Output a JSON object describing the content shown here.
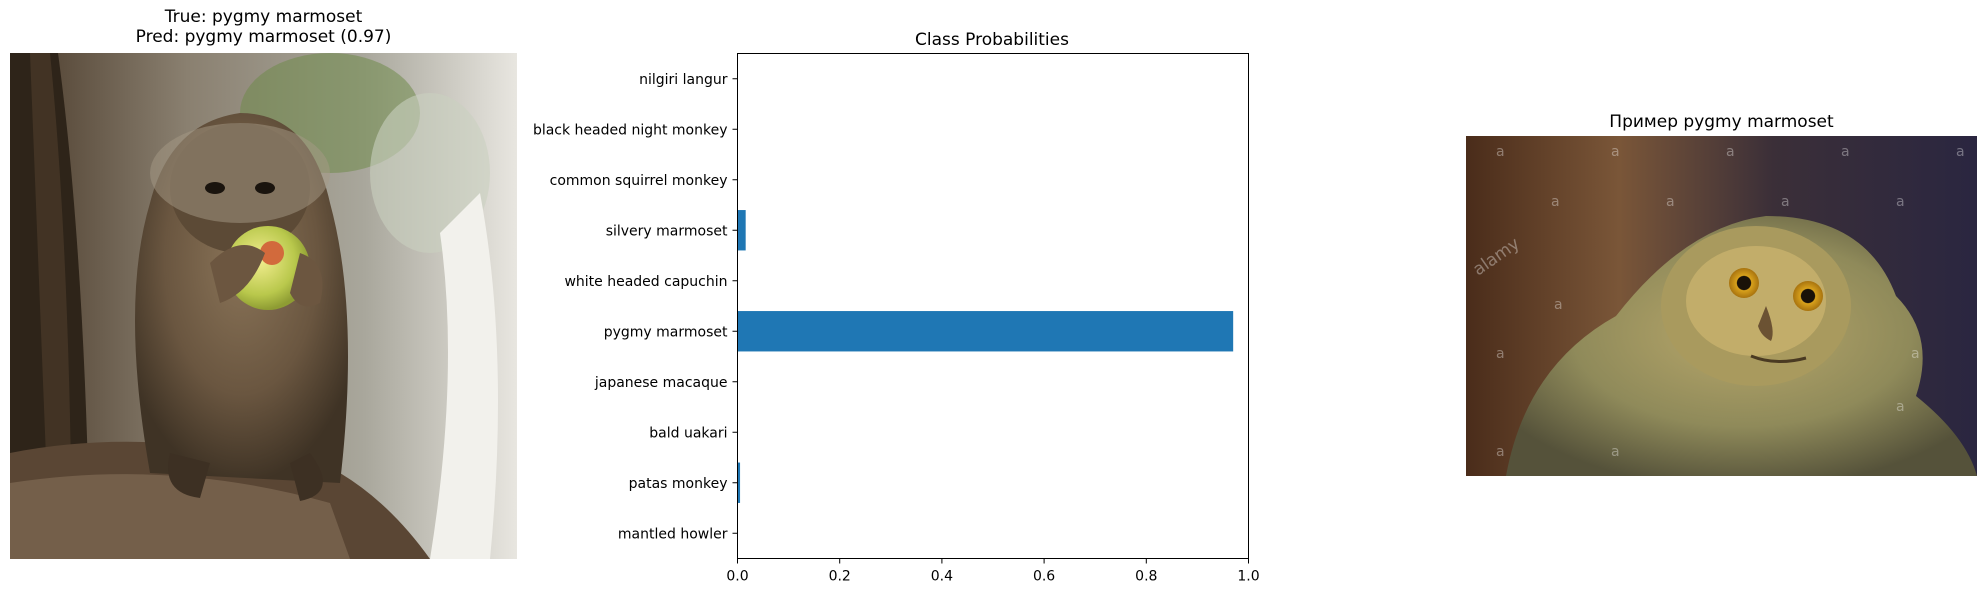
{
  "left_panel": {
    "title_line1": "True: pygmy marmoset",
    "title_line2": "Pred: pygmy marmoset (0.97)"
  },
  "right_panel": {
    "title": "Пример pygmy marmoset",
    "watermark_text": "alamy",
    "watermark_letter": "a"
  },
  "chart_data": {
    "type": "bar",
    "orientation": "horizontal",
    "title": "Class Probabilities",
    "xlabel": "",
    "ylabel": "",
    "categories": [
      "nilgiri langur",
      "black headed night monkey",
      "common squirrel monkey",
      "silvery marmoset",
      "white headed capuchin",
      "pygmy marmoset",
      "japanese macaque",
      "bald uakari",
      "patas monkey",
      "mantled howler"
    ],
    "values": [
      0.0005,
      0.0005,
      0.0005,
      0.016,
      0.0005,
      0.97,
      0.0005,
      0.0005,
      0.005,
      0.0005
    ],
    "xlim": [
      0,
      1.0
    ],
    "xticks": [
      0.0,
      0.2,
      0.4,
      0.6,
      0.8,
      1.0
    ],
    "xtick_labels": [
      "0.0",
      "0.2",
      "0.4",
      "0.6",
      "0.8",
      "1.0"
    ],
    "grid": false,
    "bar_color": "#1f77b4"
  }
}
